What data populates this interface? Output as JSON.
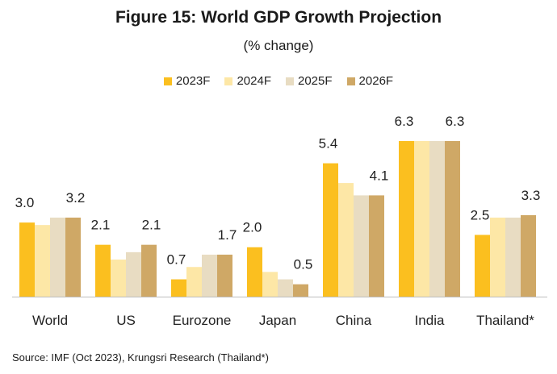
{
  "title": "Figure 15:  World GDP Growth Projection",
  "subtitle": "(% change)",
  "source": "Source: IMF (Oct 2023), Krungsri Research (Thailand*)",
  "chart_data": {
    "type": "bar",
    "categories": [
      "World",
      "US",
      "Eurozone",
      "Japan",
      "China",
      "India",
      "Thailand*"
    ],
    "series": [
      {
        "name": "2023F",
        "color": "#fbbf1f",
        "values": [
          3.0,
          2.1,
          0.7,
          2.0,
          5.4,
          6.3,
          2.5
        ]
      },
      {
        "name": "2024F",
        "color": "#fde7a6",
        "values": [
          2.9,
          1.5,
          1.2,
          1.0,
          4.6,
          6.3,
          3.2
        ]
      },
      {
        "name": "2025F",
        "color": "#e8dcc2",
        "values": [
          3.2,
          1.8,
          1.7,
          0.7,
          4.1,
          6.3,
          3.2
        ]
      },
      {
        "name": "2026F",
        "color": "#cfa866",
        "values": [
          3.2,
          2.1,
          1.7,
          0.5,
          4.1,
          6.3,
          3.3
        ]
      }
    ],
    "data_labels": [
      {
        "category": "World",
        "series": "2023F",
        "text": "3.0"
      },
      {
        "category": "World",
        "series": "2026F",
        "text": "3.2"
      },
      {
        "category": "US",
        "series": "2023F",
        "text": "2.1"
      },
      {
        "category": "US",
        "series": "2026F",
        "text": "2.1"
      },
      {
        "category": "Eurozone",
        "series": "2023F",
        "text": "0.7"
      },
      {
        "category": "Eurozone",
        "series": "2026F",
        "text": "1.7"
      },
      {
        "category": "Japan",
        "series": "2023F",
        "text": "2.0"
      },
      {
        "category": "Japan",
        "series": "2026F",
        "text": "0.5"
      },
      {
        "category": "China",
        "series": "2023F",
        "text": "5.4"
      },
      {
        "category": "China",
        "series": "2026F",
        "text": "4.1"
      },
      {
        "category": "India",
        "series": "2023F",
        "text": "6.3"
      },
      {
        "category": "India",
        "series": "2026F",
        "text": "6.3"
      },
      {
        "category": "Thailand*",
        "series": "2023F",
        "text": "2.5"
      },
      {
        "category": "Thailand*",
        "series": "2026F",
        "text": "3.3"
      }
    ],
    "ylim": [
      0,
      6.3
    ],
    "grid": false,
    "legend_position": "top"
  }
}
